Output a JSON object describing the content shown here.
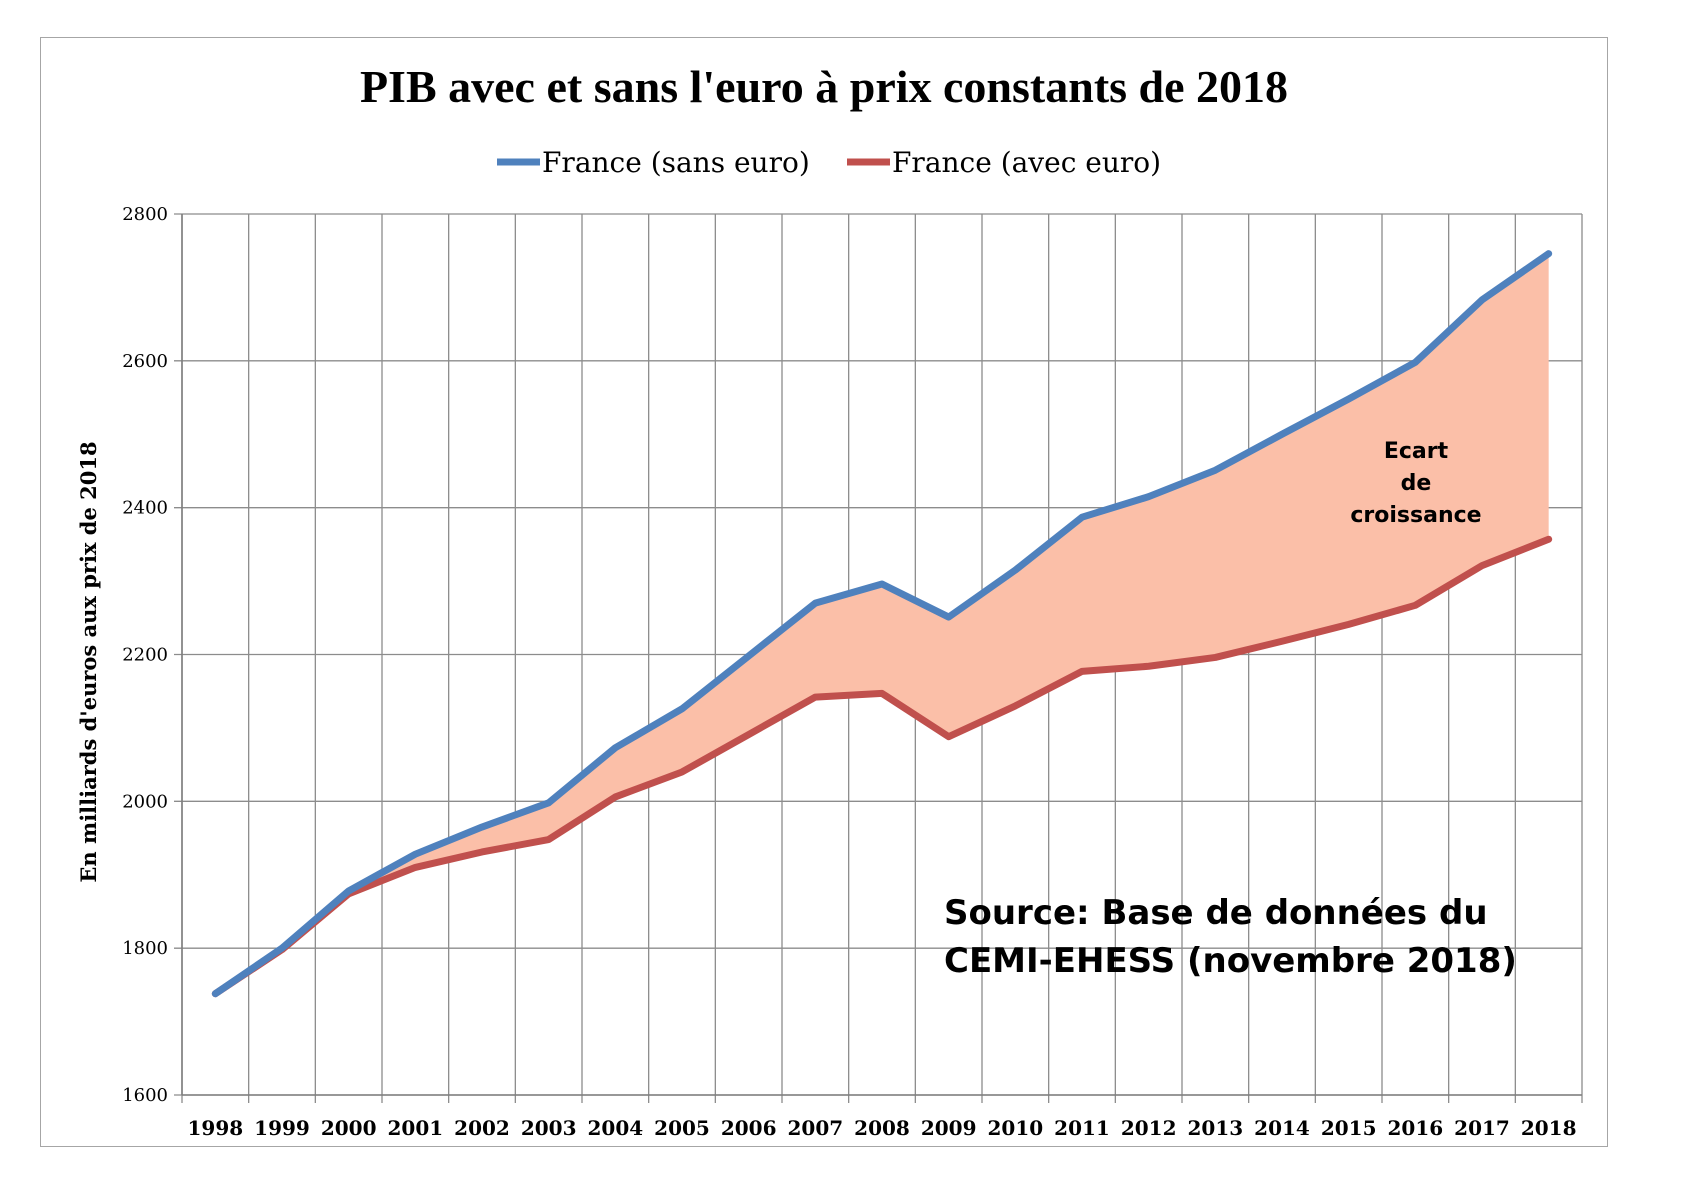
{
  "chart_data": {
    "type": "line",
    "title": "PIB avec et sans l'euro à prix constants de 2018",
    "ylabel": "En milliards d'euros aux prix de 2018",
    "xlabel": "",
    "categories": [
      "1998",
      "1999",
      "2000",
      "2001",
      "2002",
      "2003",
      "2004",
      "2005",
      "2006",
      "2007",
      "2008",
      "2009",
      "2010",
      "2011",
      "2012",
      "2013",
      "2014",
      "2015",
      "2016",
      "2017",
      "2018"
    ],
    "ylim": [
      1600,
      2800
    ],
    "yticks": [
      "1600",
      "1800",
      "2000",
      "2200",
      "2400",
      "2600",
      "2800"
    ],
    "grid": true,
    "legend": "top",
    "series": [
      {
        "name": "France (sans euro)",
        "color": "#4f81bd",
        "values": [
          1738,
          1800,
          1878,
          1928,
          1965,
          1998,
          2073,
          2126,
          2198,
          2270,
          2296,
          2251,
          2315,
          2387,
          2415,
          2451,
          2500,
          2548,
          2598,
          2683,
          2746
        ]
      },
      {
        "name": "France (avec euro)",
        "color": "#c0504d",
        "values": [
          1738,
          1798,
          1874,
          1910,
          1931,
          1948,
          2006,
          2040,
          2091,
          2142,
          2147,
          2088,
          2130,
          2177,
          2184,
          2196,
          2218,
          2241,
          2267,
          2321,
          2357
        ]
      }
    ],
    "fill_between": {
      "color": "#fbbfa8"
    },
    "annotations": [
      {
        "id": "ecart",
        "lines": [
          "Ecart",
          "de",
          "croissance"
        ]
      },
      {
        "id": "source",
        "lines": [
          "Source: Base de données du",
          "CEMI-EHESS (novembre 2018)"
        ]
      }
    ]
  }
}
